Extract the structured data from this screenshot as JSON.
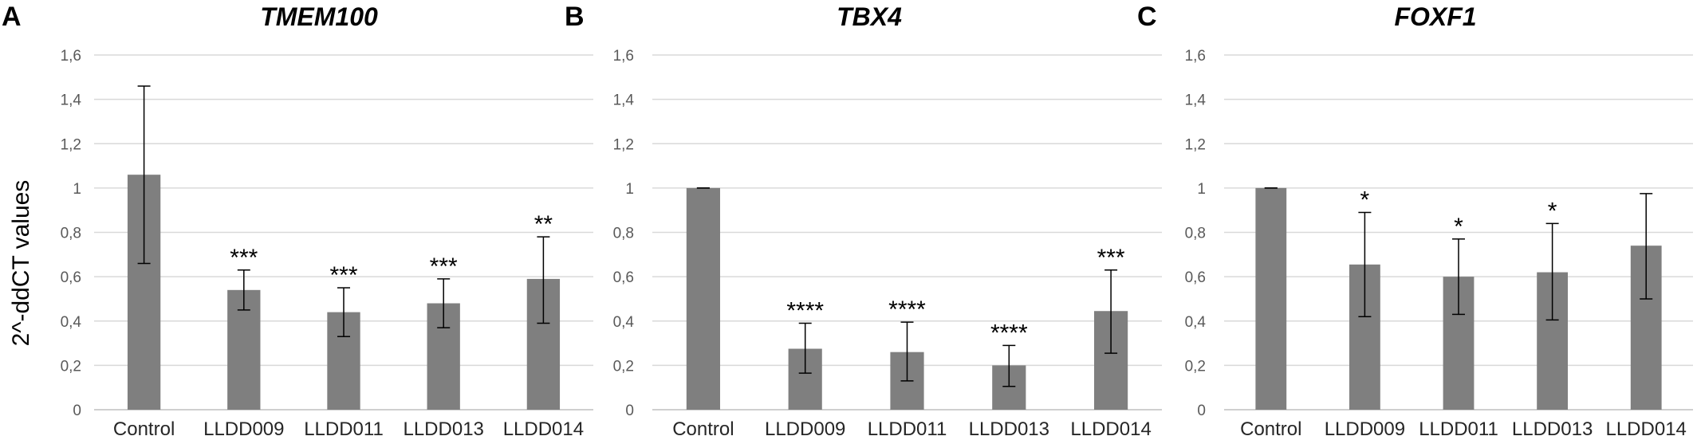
{
  "ylabel": "2^-ddCT values",
  "chart_data": [
    {
      "type": "bar",
      "panel": "A",
      "title": "TMEM100",
      "categories": [
        "Control",
        "LLDD009",
        "LLDD011",
        "LLDD013",
        "LLDD014"
      ],
      "values": [
        1.06,
        0.54,
        0.44,
        0.48,
        0.59
      ],
      "error_low": [
        0.66,
        0.45,
        0.33,
        0.37,
        0.39
      ],
      "error_high": [
        1.46,
        0.63,
        0.55,
        0.59,
        0.78
      ],
      "significance": [
        "",
        "***",
        "***",
        "***",
        "**"
      ],
      "ylim": [
        0,
        1.6
      ],
      "yticks": [
        "0",
        "0,2",
        "0,4",
        "0,6",
        "0,8",
        "1",
        "1,2",
        "1,4",
        "1,6"
      ],
      "grid": true,
      "bar_color": "#7f7f7f"
    },
    {
      "type": "bar",
      "panel": "B",
      "title": "TBX4",
      "categories": [
        "Control",
        "LLDD009",
        "LLDD011",
        "LLDD013",
        "LLDD014"
      ],
      "values": [
        1.0,
        0.275,
        0.26,
        0.2,
        0.445
      ],
      "error_low": [
        1.0,
        0.165,
        0.13,
        0.105,
        0.255
      ],
      "error_high": [
        1.0,
        0.39,
        0.395,
        0.29,
        0.63
      ],
      "significance": [
        "",
        "****",
        "****",
        "****",
        "***"
      ],
      "ylim": [
        0,
        1.6
      ],
      "yticks": [
        "0",
        "0,2",
        "0,4",
        "0,6",
        "0,8",
        "1",
        "1,2",
        "1,4",
        "1,6"
      ],
      "grid": true,
      "bar_color": "#7f7f7f"
    },
    {
      "type": "bar",
      "panel": "C",
      "title": "FOXF1",
      "categories": [
        "Control",
        "LLDD009",
        "LLDD011",
        "LLDD013",
        "LLDD014"
      ],
      "values": [
        1.0,
        0.655,
        0.6,
        0.62,
        0.74
      ],
      "error_low": [
        1.0,
        0.42,
        0.43,
        0.405,
        0.5
      ],
      "error_high": [
        1.0,
        0.89,
        0.77,
        0.84,
        0.975
      ],
      "significance": [
        "",
        "*",
        "*",
        "*",
        ""
      ],
      "ylim": [
        0,
        1.6
      ],
      "yticks": [
        "0",
        "0,2",
        "0,4",
        "0,6",
        "0,8",
        "1",
        "1,2",
        "1,4",
        "1,6"
      ],
      "grid": true,
      "bar_color": "#7f7f7f"
    }
  ]
}
